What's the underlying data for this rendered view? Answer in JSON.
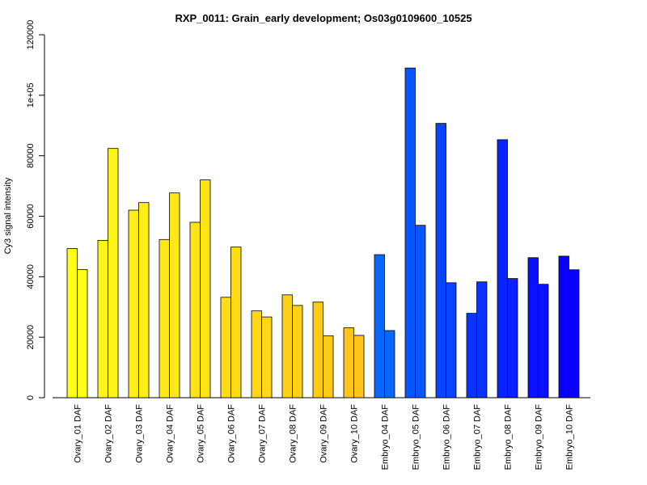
{
  "chart_data": {
    "type": "bar",
    "title": "RXP_0011: Grain_early development; Os03g0109600_10525",
    "xlabel": "",
    "ylabel": "Cy3 signal intensity",
    "ylim": [
      0,
      120000
    ],
    "y_ticks": [
      0,
      20000,
      40000,
      60000,
      80000,
      100000,
      120000
    ],
    "y_tick_labels": [
      "0",
      "20000",
      "40000",
      "60000",
      "80000",
      "1e+05",
      "120000"
    ],
    "grid": false,
    "legend": "none",
    "categories": [
      "Ovary_01 DAF",
      "Ovary_02 DAF",
      "Ovary_03 DAF",
      "Ovary_04 DAF",
      "Ovary_05 DAF",
      "Ovary_06 DAF",
      "Ovary_07 DAF",
      "Ovary_08 DAF",
      "Ovary_09 DAF",
      "Ovary_10 DAF",
      "Embryo_04 DAF",
      "Embryo_05 DAF",
      "Embryo_06 DAF",
      "Embryo_07 DAF",
      "Embryo_08 DAF",
      "Embryo_09 DAF",
      "Embryo_10 DAF"
    ],
    "series": [
      {
        "values": [
          49300,
          52000,
          62000,
          52300,
          58000,
          33200,
          28700,
          34000,
          31600,
          23100,
          47300,
          109000,
          90700,
          27900,
          85300,
          46300,
          46800
        ]
      },
      {
        "values": [
          42400,
          82400,
          64500,
          67700,
          72000,
          49800,
          26700,
          30500,
          20500,
          20600,
          22200,
          57000,
          38000,
          38300,
          39400,
          37500,
          42300
        ]
      }
    ],
    "colors": [
      "#FFFF1A",
      "#FFF41A",
      "#FFEE1A",
      "#FFE81A",
      "#FFE21A",
      "#FFDC1A",
      "#FFD61A",
      "#FFD01A",
      "#FFCA1A",
      "#FFC41A",
      "#0A66FF",
      "#0A55FF",
      "#0A44FF",
      "#0A33FF",
      "#0A22FF",
      "#0A11FF",
      "#0A00FF"
    ]
  }
}
